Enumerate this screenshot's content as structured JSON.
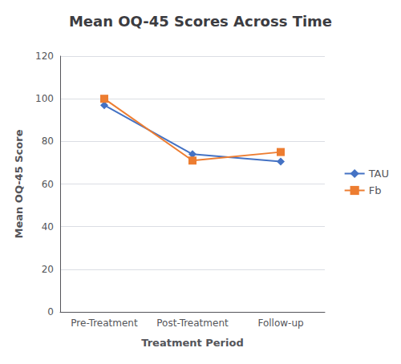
{
  "chart_data": {
    "type": "line",
    "title": "Mean OQ-45 Scores Across Time",
    "xlabel": "Treatment Period",
    "ylabel": "Mean OQ-45 Score",
    "categories": [
      "Pre-Treatment",
      "Post-Treatment",
      "Follow-up"
    ],
    "series": [
      {
        "name": "TAU",
        "color": "#4472C4",
        "marker": "diamond",
        "values": [
          97,
          74,
          70.5
        ]
      },
      {
        "name": "Fb",
        "color": "#ED7D31",
        "marker": "square",
        "values": [
          100,
          71,
          75
        ]
      }
    ],
    "ylim": [
      0,
      120
    ],
    "yticks": [
      0,
      20,
      40,
      60,
      80,
      100,
      120
    ],
    "grid": true,
    "legend": "right"
  }
}
